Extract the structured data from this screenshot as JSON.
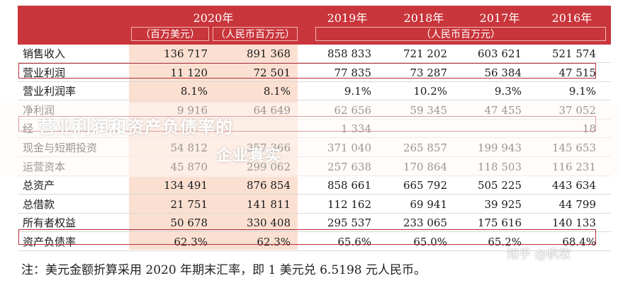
{
  "header": {
    "year_2020": "2020年",
    "year_2019": "2019年",
    "year_2018": "2018年",
    "year_2017": "2017年",
    "year_2016": "2016年",
    "unit_usd": "（百万美元）",
    "unit_rmb": "（人民币百万元）",
    "unit_rmb_span": "（人民币百万元）"
  },
  "rows": [
    {
      "label": "销售收入",
      "usd": "136 717",
      "c2020": "891 368",
      "c2019": "858 833",
      "c2018": "721 202",
      "c2017": "603 621",
      "c2016": "521 574"
    },
    {
      "label": "营业利润",
      "usd": "11 120",
      "c2020": "72 501",
      "c2019": "77 835",
      "c2018": "73 287",
      "c2017": "56 384",
      "c2016": "47 515"
    },
    {
      "label": "营业利润率",
      "usd": "8.1%",
      "c2020": "8.1%",
      "c2019": "9.1%",
      "c2018": "10.2%",
      "c2017": "9.3%",
      "c2016": "9.1%"
    },
    {
      "label": "净利润",
      "usd": "9 916",
      "c2020": "64 649",
      "c2019": "62 656",
      "c2018": "59 345",
      "c2017": "47 455",
      "c2016": "37 052"
    },
    {
      "label": "经",
      "usd": "",
      "c2020": "",
      "c2019": "1 334",
      "c2018": "",
      "c2017": "",
      "c2016": "18"
    },
    {
      "label": "现金与短期投资",
      "usd": "54 812",
      "c2020": "357 366",
      "c2019": "371 040",
      "c2018": "265 857",
      "c2017": "199 943",
      "c2016": "145 653"
    },
    {
      "label": "运营资本",
      "usd": "45 870",
      "c2020": "299 062",
      "c2019": "257 638",
      "c2018": "170 864",
      "c2017": "118 503",
      "c2016": "116 231"
    },
    {
      "label": "总资产",
      "usd": "134 491",
      "c2020": "876 854",
      "c2019": "858 661",
      "c2018": "665 792",
      "c2017": "505 225",
      "c2016": "443 634"
    },
    {
      "label": "总借款",
      "usd": "21 751",
      "c2020": "141 811",
      "c2019": "112 162",
      "c2018": "69 941",
      "c2017": "39 925",
      "c2016": "44 799"
    },
    {
      "label": "所有者权益",
      "usd": "50 678",
      "c2020": "330 408",
      "c2019": "295 537",
      "c2018": "233 065",
      "c2017": "175 616",
      "c2016": "140 133"
    },
    {
      "label": "资产负债率",
      "usd": "62.3%",
      "c2020": "62.3%",
      "c2019": "65.6%",
      "c2018": "65.0%",
      "c2017": "65.2%",
      "c2016": "68.4%"
    }
  ],
  "overlay": {
    "line1": "营业利润和资产负债率的",
    "line2": "企业真实"
  },
  "note": "注：美元金额折算采用 2020 年期末汇率，即 1 美元兑 6.5198 元人民币。",
  "watermark": "知乎 @帆软"
}
